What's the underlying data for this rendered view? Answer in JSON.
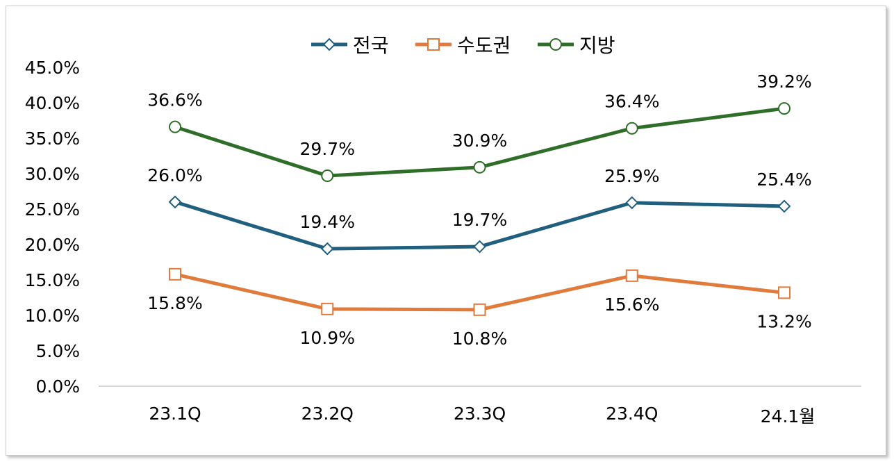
{
  "chart_data": {
    "type": "line",
    "categories": [
      "23.1Q",
      "23.2Q",
      "23.3Q",
      "23.4Q",
      "24.1월"
    ],
    "ylim": [
      0,
      45
    ],
    "y_ticks": [
      "0.0%",
      "5.0%",
      "10.0%",
      "15.0%",
      "20.0%",
      "25.0%",
      "30.0%",
      "35.0%",
      "40.0%",
      "45.0%"
    ],
    "grid": false,
    "legend_position": "top",
    "series": [
      {
        "name": "전국",
        "marker": "diamond",
        "color": "#215f7f",
        "values": [
          26.0,
          19.4,
          19.7,
          25.9,
          25.4
        ],
        "labels": [
          "26.0%",
          "19.4%",
          "19.7%",
          "25.9%",
          "25.4%"
        ],
        "label_position": "above"
      },
      {
        "name": "수도권",
        "marker": "square",
        "color": "#e07b3c",
        "values": [
          15.8,
          10.9,
          10.8,
          15.6,
          13.2
        ],
        "labels": [
          "15.8%",
          "10.9%",
          "10.8%",
          "15.6%",
          "13.2%"
        ],
        "label_position": "below"
      },
      {
        "name": "지방",
        "marker": "circle",
        "color": "#2e6e28",
        "values": [
          36.6,
          29.7,
          30.9,
          36.4,
          39.2
        ],
        "labels": [
          "36.6%",
          "29.7%",
          "30.9%",
          "36.4%",
          "39.2%"
        ],
        "label_position": "above"
      }
    ]
  }
}
